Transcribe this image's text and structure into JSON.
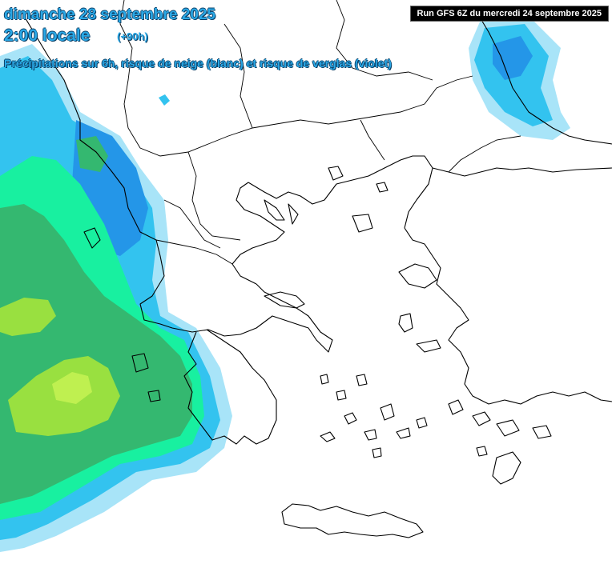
{
  "header": {
    "date": "dimanche 28 septembre 2025",
    "time": "2:00 locale",
    "lead": "(+90h)",
    "subtitle": "Précipitations sur 6h, risque de neige (blanc) et risque de verglas (violet)"
  },
  "run_info": "Run GFS 6Z du mercredi 24 septembre 2025",
  "colors": {
    "precip_light": "#a8e4f8",
    "precip_moderate": "#33c3ef",
    "precip_heavy": "#2496e8",
    "precip_green_light": "#18f0a0",
    "precip_green": "#34b870",
    "precip_lime": "#99e040",
    "precip_yellowgreen": "#bff050",
    "coastline": "#000000",
    "title_text": "#2aa8e6"
  },
  "map": {
    "region": "Greece / Balkans / Aegean",
    "lit_areas": [
      "Ionian Sea (west)",
      "Black Sea coast (north-east)"
    ]
  }
}
